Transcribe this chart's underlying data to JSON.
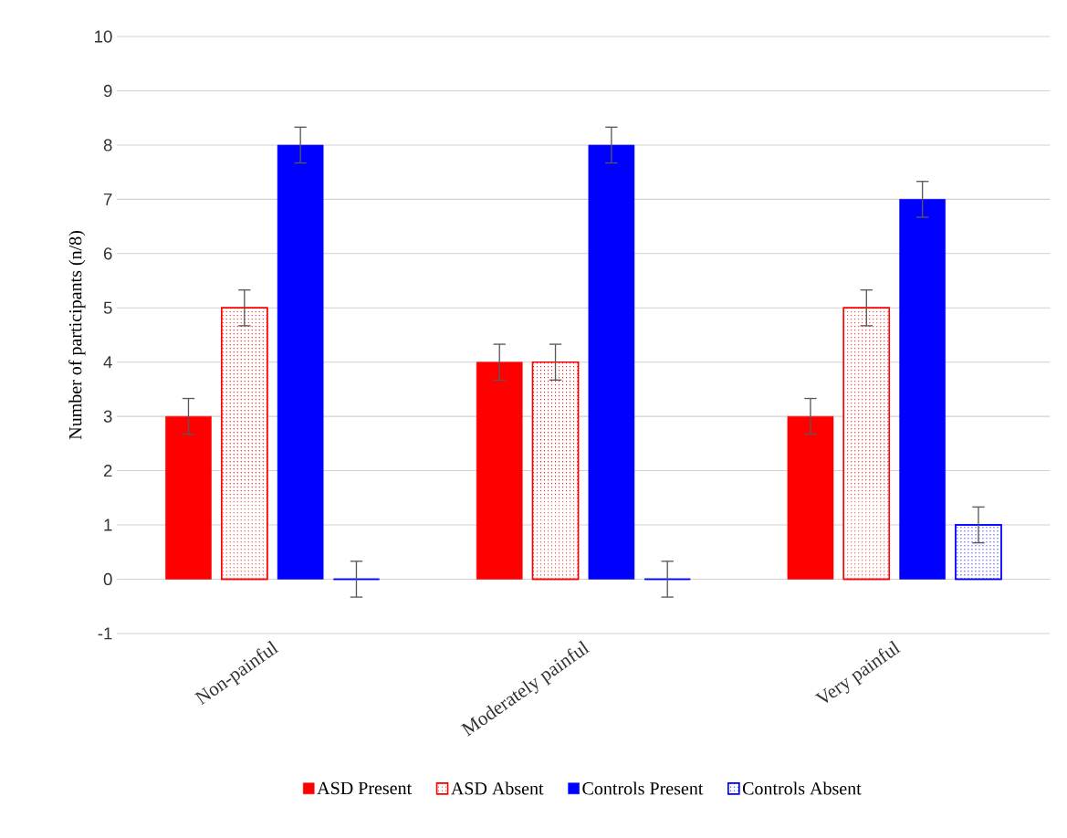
{
  "chart_data": {
    "type": "bar",
    "ylabel": "Number of participants (n/8)",
    "categories": [
      "Non-painful",
      "Moderately painful",
      "Very painful"
    ],
    "series": [
      {
        "name": "ASD Present",
        "color": "#ff0000",
        "line_style": "solid",
        "values": [
          3,
          4,
          3
        ],
        "errors": [
          0.33,
          0.33,
          0.33
        ]
      },
      {
        "name": "ASD Absent",
        "color": "#ff0000",
        "line_style": "dotted",
        "values": [
          5,
          4,
          5
        ],
        "errors": [
          0.33,
          0.33,
          0.33
        ]
      },
      {
        "name": "Controls Present",
        "color": "#0000ff",
        "line_style": "solid",
        "values": [
          8,
          8,
          7
        ],
        "errors": [
          0.33,
          0.33,
          0.33
        ]
      },
      {
        "name": "Controls Absent",
        "color": "#0000ff",
        "line_style": "dotted",
        "values": [
          0,
          0,
          1
        ],
        "errors": [
          0.33,
          0.33,
          0.33
        ]
      }
    ],
    "ylim": [
      -1,
      10
    ],
    "yticks": [
      -1,
      0,
      1,
      2,
      3,
      4,
      5,
      6,
      7,
      8,
      9,
      10
    ],
    "grid": "y",
    "legend": "bottom"
  }
}
